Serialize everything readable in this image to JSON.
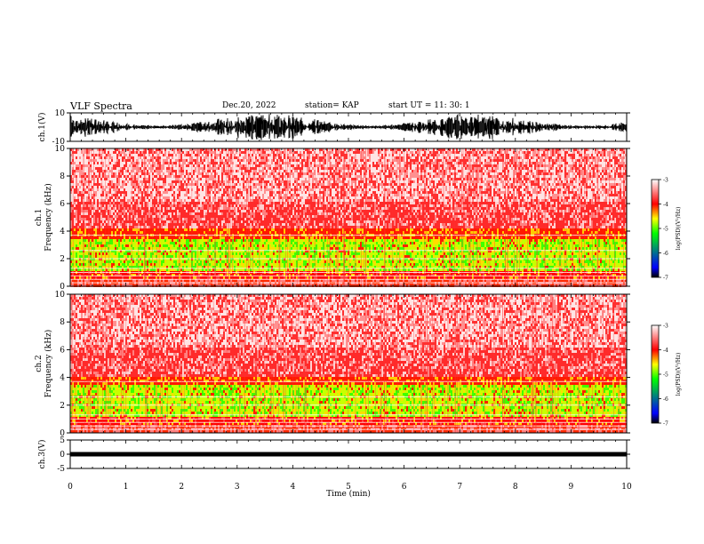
{
  "header": {
    "title": "VLF Spectra",
    "date": "Dec.20, 2022",
    "station": "station= KAP",
    "start": "start  UT  =   11: 30: 1"
  },
  "chart_data": [
    {
      "type": "line",
      "panel": "ch1-waveform",
      "ylabel": "ch.1(V)",
      "ylim": [
        -10,
        10
      ],
      "yticks": [
        10,
        -10
      ],
      "xlim": [
        0,
        10
      ]
    },
    {
      "type": "heatmap",
      "panel": "ch1-spectrogram",
      "ylabel_line1": "ch.1",
      "ylabel_line2": "Frequency  (kHz)",
      "ylim": [
        0,
        10
      ],
      "yticks": [
        0,
        2,
        4,
        6,
        8,
        10
      ],
      "xlim": [
        0,
        10
      ],
      "colorbar": {
        "label": "log(PSD)(V²/Hz)",
        "range": [
          -7,
          -3
        ],
        "ticks": [
          -3,
          -4,
          -5,
          -6,
          -7
        ],
        "colors": [
          "#000000",
          "#0000ff",
          "#00ff00",
          "#ffff00",
          "#ff0000",
          "#ffffff"
        ]
      }
    },
    {
      "type": "heatmap",
      "panel": "ch2-spectrogram",
      "ylabel_line1": "ch.2",
      "ylabel_line2": "Frequency  (kHz)",
      "ylim": [
        0,
        10
      ],
      "yticks": [
        0,
        2,
        4,
        6,
        8,
        10
      ],
      "xlim": [
        0,
        10
      ],
      "colorbar": {
        "label": "log(PSD)(V²/Hz)",
        "range": [
          -7,
          -3
        ],
        "ticks": [
          -3,
          -4,
          -5,
          -6,
          -7
        ],
        "colors": [
          "#000000",
          "#0000ff",
          "#00ff00",
          "#ffff00",
          "#ff0000",
          "#ffffff"
        ]
      }
    },
    {
      "type": "line",
      "panel": "ch3-waveform",
      "ylabel": "ch.3(V)",
      "ylim": [
        -5,
        5
      ],
      "yticks": [
        5,
        0,
        -5
      ],
      "xlabel": "Time  (min)",
      "xlim": [
        0,
        10
      ],
      "xticks": [
        0,
        1,
        2,
        3,
        4,
        5,
        6,
        7,
        8,
        9,
        10
      ]
    }
  ]
}
